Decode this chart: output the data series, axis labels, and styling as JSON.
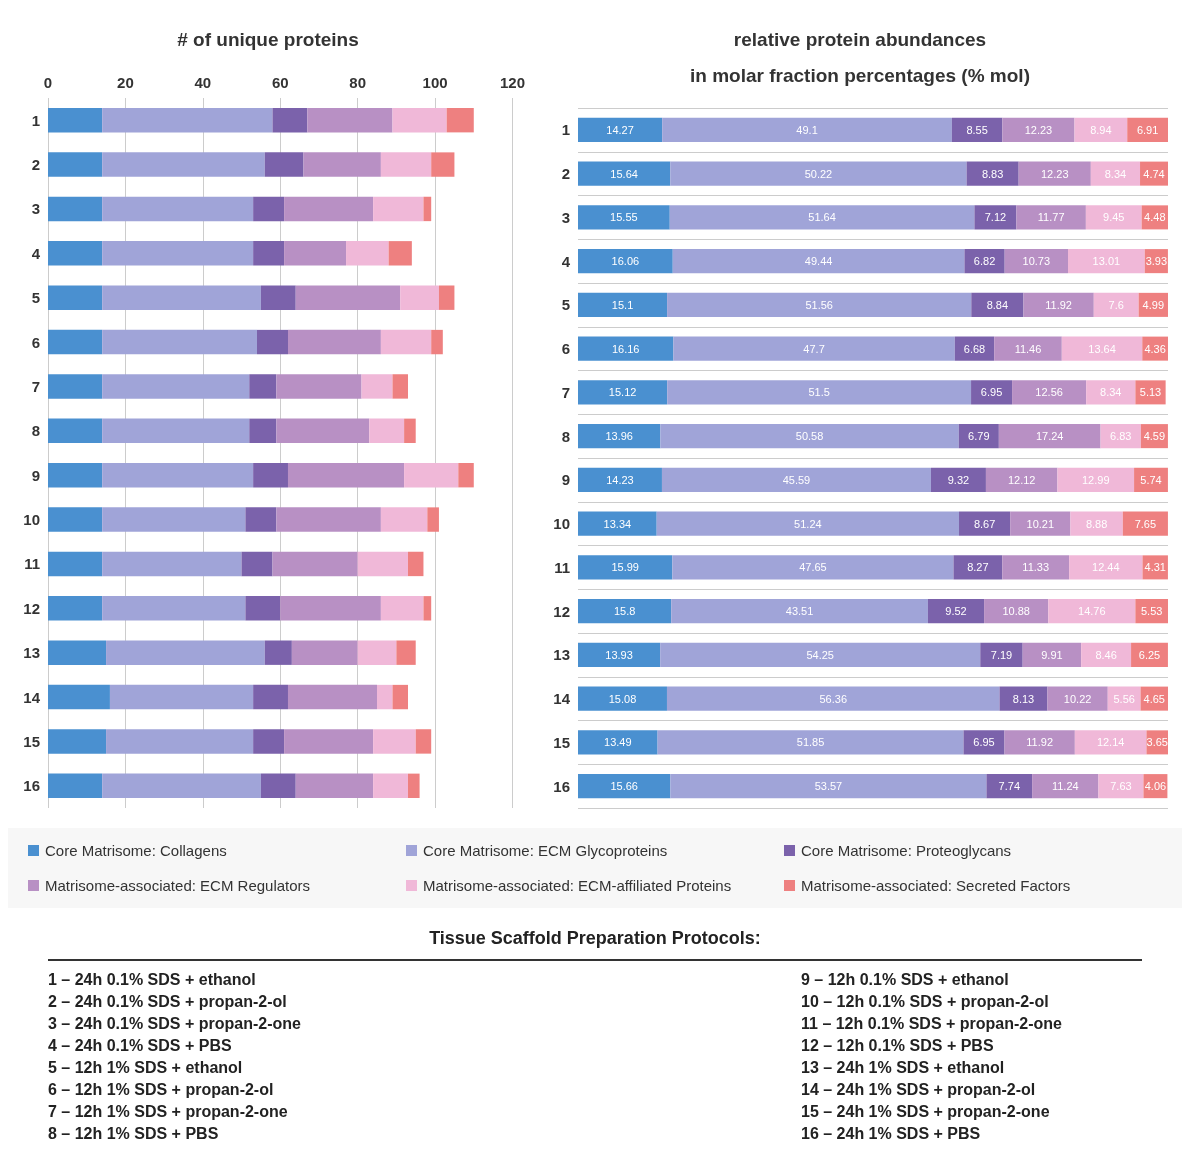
{
  "chart_data": [
    {
      "type": "bar",
      "title": "# of unique proteins",
      "orientation": "horizontal",
      "stacked": true,
      "categories": [
        "1",
        "2",
        "3",
        "4",
        "5",
        "6",
        "7",
        "8",
        "9",
        "10",
        "11",
        "12",
        "13",
        "14",
        "15",
        "16"
      ],
      "xlim": [
        0,
        120
      ],
      "xticks": [
        0,
        20,
        40,
        60,
        80,
        100,
        120
      ],
      "grid": "x",
      "legend": "bottom",
      "series": [
        {
          "name": "Core Matrisome: Collagens",
          "color": "#4a90d0",
          "values": [
            14,
            14,
            14,
            14,
            14,
            14,
            14,
            14,
            14,
            14,
            14,
            14,
            15,
            16,
            15,
            14
          ]
        },
        {
          "name": "Core Matrisome: ECM Glycoproteins",
          "color": "#a0a4d8",
          "values": [
            44,
            42,
            39,
            39,
            41,
            40,
            38,
            38,
            39,
            37,
            36,
            37,
            41,
            37,
            38,
            41
          ]
        },
        {
          "name": "Core Matrisome: Proteoglycans",
          "color": "#7b62ab",
          "values": [
            9,
            10,
            8,
            8,
            9,
            8,
            7,
            7,
            9,
            8,
            8,
            9,
            7,
            9,
            8,
            9
          ]
        },
        {
          "name": "Matrisome-associated: ECM Regulators",
          "color": "#b890c4",
          "values": [
            22,
            20,
            23,
            16,
            27,
            24,
            22,
            24,
            30,
            27,
            22,
            26,
            17,
            23,
            23,
            20
          ]
        },
        {
          "name": "Matrisome-associated: ECM-affiliated Proteins",
          "color": "#f0b8d8",
          "values": [
            14,
            13,
            13,
            11,
            10,
            13,
            8,
            9,
            14,
            12,
            13,
            11,
            10,
            4,
            11,
            9
          ]
        },
        {
          "name": "Matrisome-associated: Secreted Factors",
          "color": "#ee8080",
          "values": [
            7,
            6,
            2,
            6,
            4,
            3,
            4,
            3,
            4,
            3,
            4,
            2,
            5,
            4,
            4,
            3
          ]
        }
      ]
    },
    {
      "type": "bar",
      "title": "relative protein abundances\nin molar fraction percentages (% mol)",
      "orientation": "horizontal",
      "stacked": true,
      "categories": [
        "1",
        "2",
        "3",
        "4",
        "5",
        "6",
        "7",
        "8",
        "9",
        "10",
        "11",
        "12",
        "13",
        "14",
        "15",
        "16"
      ],
      "xlim": [
        0,
        100
      ],
      "tick_labels": "y",
      "grid": "y",
      "data_labels": true,
      "series": [
        {
          "color": "#4a90d0",
          "values": [
            14.27,
            15.64,
            15.55,
            16.06,
            15.1,
            16.16,
            15.12,
            13.96,
            14.23,
            13.34,
            15.99,
            15.8,
            13.93,
            15.08,
            13.49,
            15.66
          ]
        },
        {
          "color": "#a0a4d8",
          "values": [
            49.1,
            50.22,
            51.64,
            49.44,
            51.56,
            47.7,
            51.5,
            50.58,
            45.59,
            51.24,
            47.65,
            43.51,
            54.25,
            56.36,
            51.85,
            53.57
          ]
        },
        {
          "color": "#7b62ab",
          "values": [
            8.55,
            8.83,
            7.12,
            6.82,
            8.84,
            6.68,
            6.95,
            6.79,
            9.32,
            8.67,
            8.27,
            9.52,
            7.19,
            8.13,
            6.95,
            7.74
          ]
        },
        {
          "color": "#b890c4",
          "values": [
            12.23,
            12.23,
            11.77,
            10.73,
            11.92,
            11.46,
            12.56,
            17.24,
            12.12,
            10.21,
            11.33,
            10.88,
            9.91,
            10.22,
            11.92,
            11.24
          ]
        },
        {
          "color": "#f0b8d8",
          "values": [
            8.94,
            8.34,
            9.45,
            13.01,
            7.6,
            13.64,
            8.34,
            6.83,
            12.99,
            8.88,
            12.44,
            14.76,
            8.46,
            5.56,
            12.14,
            7.63
          ]
        },
        {
          "color": "#ee8080",
          "values": [
            6.91,
            4.74,
            4.48,
            3.93,
            4.99,
            4.36,
            5.13,
            4.59,
            5.74,
            7.65,
            4.31,
            5.53,
            6.25,
            4.65,
            3.65,
            4.06
          ]
        }
      ]
    },
    {
      "type": "other",
      "title": "Tissue Scaffold Preparation Protocols:",
      "annotations": [
        "1 – 24h 0.1% SDS + ethanol",
        "2 – 24h 0.1% SDS + propan-2-ol",
        "3 – 24h 0.1% SDS + propan-2-one",
        "4 – 24h 0.1% SDS + PBS",
        "5 – 12h 1% SDS + ethanol",
        "6 – 12h 1% SDS + propan-2-ol",
        "7 – 12h 1% SDS + propan-2-one",
        "8 – 12h 1% SDS + PBS",
        "9 – 12h 0.1% SDS + ethanol",
        "10 – 12h 0.1% SDS + propan-2-ol",
        "11 – 12h 0.1% SDS + propan-2-one",
        "12 – 12h 0.1% SDS + PBS",
        "13 – 24h 1% SDS + ethanol",
        "14 – 24h 1% SDS + propan-2-ol",
        "15 – 24h 1% SDS + propan-2-one",
        "16 – 24h 1% SDS + PBS"
      ]
    }
  ]
}
